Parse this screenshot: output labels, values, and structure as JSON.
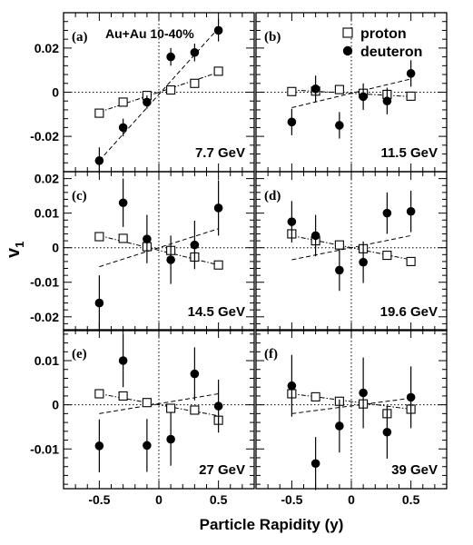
{
  "chart_data": {
    "type": "scatter",
    "ylabel": "v",
    "ylabel_sub": "1",
    "xlabel": "Particle Rapidity (y)",
    "xlim": [
      -0.8,
      0.8
    ],
    "x_ticks": [
      -0.5,
      0,
      0.5
    ],
    "x_tick_labels": [
      "-0.5",
      "0",
      "0.5"
    ],
    "legend": {
      "placement": "top-right of panel (b)",
      "entries": [
        {
          "marker": "open-square",
          "label": "proton"
        },
        {
          "marker": "filled-circle",
          "label": "deuteron"
        }
      ]
    },
    "system_label": "Au+Au 10-40%",
    "panels": [
      {
        "tag": "(a)",
        "energy": "7.7 GeV",
        "ylim": [
          -0.036,
          0.036
        ],
        "y_ticks": [
          -0.02,
          0,
          0.02
        ],
        "y_tick_labels": [
          "-0.02",
          "0",
          "0.02"
        ],
        "proton": {
          "x": [
            -0.5,
            -0.3,
            -0.1,
            0.1,
            0.3,
            0.5
          ],
          "y": [
            -0.0095,
            -0.0045,
            -0.0015,
            0.001,
            0.004,
            0.0095
          ],
          "err": [
            0.0006,
            0.0005,
            0.0004,
            0.0004,
            0.0005,
            0.0006
          ]
        },
        "deuteron": {
          "x": [
            -0.5,
            -0.3,
            -0.1,
            0.1,
            0.3,
            0.5
          ],
          "y": [
            -0.031,
            -0.016,
            -0.0045,
            0.016,
            0.018,
            0.028
          ],
          "err": [
            0.006,
            0.004,
            0.003,
            0.004,
            0.004,
            0.005
          ]
        },
        "proton_fit": {
          "x": [
            -0.5,
            0.5
          ],
          "y": [
            -0.009,
            0.009
          ]
        },
        "deuteron_fit": {
          "x": [
            -0.5,
            0.5
          ],
          "y": [
            -0.031,
            0.029
          ]
        }
      },
      {
        "tag": "(b)",
        "energy": "11.5 GeV",
        "ylim": [
          -0.036,
          0.036
        ],
        "y_ticks": [
          -0.02,
          0,
          0.02
        ],
        "y_tick_labels": [
          "-0.02",
          "0",
          "0.02"
        ],
        "proton": {
          "x": [
            -0.5,
            -0.3,
            -0.1,
            0.1,
            0.3,
            0.5
          ],
          "y": [
            0.0003,
            0.0005,
            0.0012,
            -0.0005,
            -0.001,
            -0.0018
          ],
          "err": [
            0.0008,
            0.0008,
            0.0008,
            0.0008,
            0.0008,
            0.0008
          ]
        },
        "deuteron": {
          "x": [
            -0.5,
            -0.3,
            -0.1,
            0.1,
            0.3,
            0.5
          ],
          "y": [
            -0.0135,
            0.0015,
            -0.015,
            -0.002,
            -0.004,
            0.0085
          ],
          "err": [
            0.006,
            0.006,
            0.006,
            0.006,
            0.006,
            0.006
          ]
        },
        "proton_fit": {
          "x": [
            -0.5,
            0.5
          ],
          "y": [
            0.001,
            -0.002
          ]
        },
        "deuteron_fit": {
          "x": [
            -0.5,
            0.5
          ],
          "y": [
            -0.007,
            0.006
          ]
        }
      },
      {
        "tag": "(c)",
        "energy": "14.5 GeV",
        "ylim": [
          -0.024,
          0.022
        ],
        "y_ticks": [
          -0.02,
          -0.01,
          0,
          0.01,
          0.02
        ],
        "y_tick_labels": [
          "-0.02",
          "-0.01",
          "0",
          "0.01",
          "0.02"
        ],
        "proton": {
          "x": [
            -0.5,
            -0.3,
            -0.1,
            0.1,
            0.3,
            0.5
          ],
          "y": [
            0.0032,
            0.0027,
            0.0003,
            -0.0008,
            -0.0027,
            -0.005
          ],
          "err": [
            0.0006,
            0.0006,
            0.0006,
            0.0006,
            0.0006,
            0.0006
          ]
        },
        "deuteron": {
          "x": [
            -0.5,
            -0.3,
            -0.1,
            0.1,
            0.3,
            0.5
          ],
          "y": [
            -0.016,
            0.013,
            0.0025,
            -0.0035,
            0.0008,
            0.0115
          ],
          "err": [
            0.008,
            0.007,
            0.007,
            0.007,
            0.007,
            0.008
          ]
        },
        "proton_fit": {
          "x": [
            -0.5,
            0.5
          ],
          "y": [
            0.0035,
            -0.005
          ]
        },
        "deuteron_fit": {
          "x": [
            -0.5,
            0.5
          ],
          "y": [
            -0.0055,
            0.0055
          ]
        }
      },
      {
        "tag": "(d)",
        "energy": "19.6 GeV",
        "ylim": [
          -0.024,
          0.022
        ],
        "y_ticks": [
          -0.02,
          -0.01,
          0,
          0.01,
          0.02
        ],
        "y_tick_labels": [
          "-0.02",
          "-0.01",
          "0",
          "0.01",
          "0.02"
        ],
        "proton": {
          "x": [
            -0.5,
            -0.3,
            -0.1,
            0.1,
            0.3,
            0.5
          ],
          "y": [
            0.004,
            0.002,
            0.0008,
            -0.0003,
            -0.0022,
            -0.004
          ],
          "err": [
            0.0005,
            0.0005,
            0.0005,
            0.0005,
            0.0005,
            0.0005
          ]
        },
        "deuteron": {
          "x": [
            -0.5,
            -0.3,
            -0.1,
            0.1,
            0.3,
            0.5
          ],
          "y": [
            0.0075,
            0.0035,
            -0.0065,
            -0.0042,
            0.01,
            0.0105
          ],
          "err": [
            0.006,
            0.006,
            0.006,
            0.006,
            0.006,
            0.006
          ]
        },
        "proton_fit": {
          "x": [
            -0.5,
            0.5
          ],
          "y": [
            0.0035,
            -0.0035
          ]
        },
        "deuteron_fit": {
          "x": [
            -0.5,
            0.5
          ],
          "y": [
            -0.0035,
            0.0035
          ]
        }
      },
      {
        "tag": "(e)",
        "energy": "27 GeV",
        "ylim": [
          -0.019,
          0.017
        ],
        "y_ticks": [
          -0.01,
          0,
          0.01
        ],
        "y_tick_labels": [
          "-0.01",
          "0",
          "0.01"
        ],
        "proton": {
          "x": [
            -0.5,
            -0.3,
            -0.1,
            0.1,
            0.3,
            0.5
          ],
          "y": [
            0.0025,
            0.002,
            0.0005,
            -0.0008,
            -0.0012,
            -0.0035
          ],
          "err": [
            0.0006,
            0.0006,
            0.0006,
            0.0006,
            0.0006,
            0.0008
          ]
        },
        "deuteron": {
          "x": [
            -0.5,
            -0.3,
            -0.1,
            0.1,
            0.3,
            0.5
          ],
          "y": [
            -0.0093,
            0.01,
            -0.0092,
            -0.0078,
            0.007,
            -0.0003
          ],
          "err": [
            0.006,
            0.006,
            0.006,
            0.006,
            0.006,
            0.006
          ]
        },
        "proton_fit": {
          "x": [
            -0.5,
            0.5
          ],
          "y": [
            0.0025,
            -0.0025
          ]
        },
        "deuteron_fit": {
          "x": [
            -0.5,
            0.5
          ],
          "y": [
            -0.002,
            0.0025
          ]
        }
      },
      {
        "tag": "(f)",
        "energy": "39 GeV",
        "ylim": [
          -0.019,
          0.017
        ],
        "y_ticks": [
          -0.01,
          0,
          0.01
        ],
        "y_tick_labels": [
          "-0.01",
          "0",
          "0.01"
        ],
        "proton": {
          "x": [
            -0.5,
            -0.3,
            -0.1,
            0.1,
            0.3,
            0.5
          ],
          "y": [
            0.0025,
            0.0018,
            0.0008,
            0.0002,
            -0.002,
            -0.001
          ],
          "err": [
            0.001,
            0.0008,
            0.0008,
            0.0008,
            0.0008,
            0.001
          ]
        },
        "deuteron": {
          "x": [
            -0.5,
            -0.3,
            -0.1,
            0.1,
            0.3,
            0.5
          ],
          "y": [
            0.0043,
            -0.0133,
            -0.0048,
            0.0027,
            -0.0062,
            0.0017
          ],
          "err": [
            0.007,
            0.006,
            0.006,
            0.008,
            0.006,
            0.007
          ]
        },
        "proton_fit": {
          "x": [
            -0.5,
            0.5
          ],
          "y": [
            0.0025,
            -0.001
          ]
        },
        "deuteron_fit": {
          "x": [
            -0.5,
            0.5
          ],
          "y": [
            -0.002,
            0.0015
          ]
        }
      }
    ]
  }
}
